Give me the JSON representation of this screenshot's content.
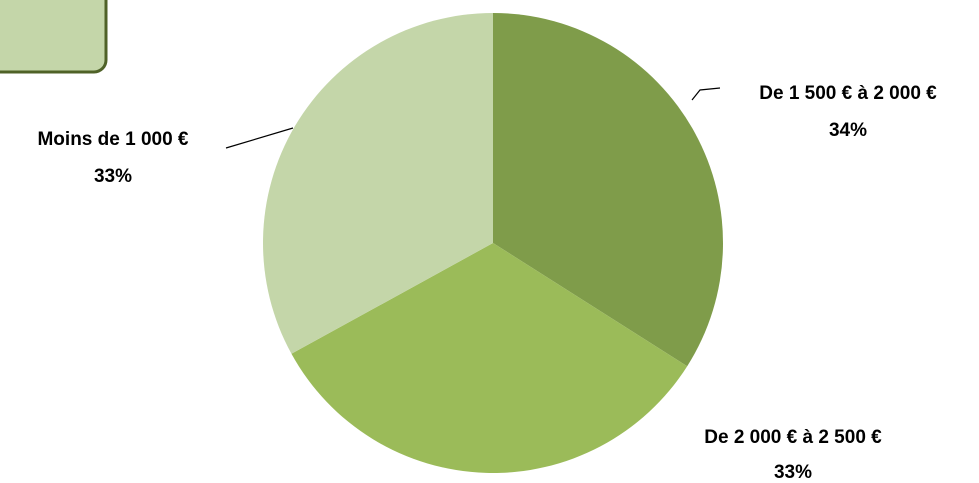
{
  "chart_data": {
    "type": "pie",
    "categories": [
      "De 1 500 € à 2 000 €",
      "De 2 000 € à 2 500 €",
      "Moins de 1 000 €"
    ],
    "values": [
      34,
      33,
      33
    ],
    "value_labels": [
      "34%",
      "33%",
      "33%"
    ],
    "colors": [
      "#7f9c4a",
      "#9bbb59",
      "#c4d6a9"
    ]
  }
}
